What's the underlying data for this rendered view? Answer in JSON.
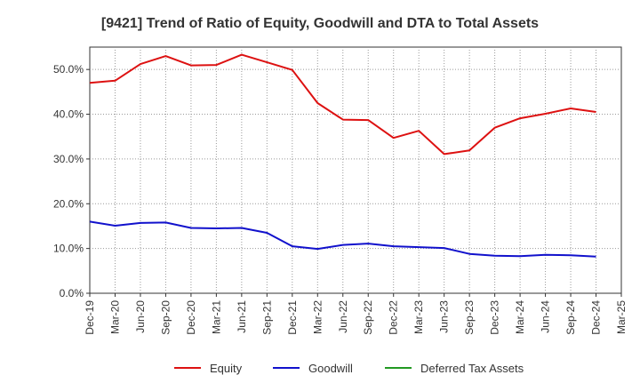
{
  "chart_data": {
    "type": "line",
    "title": "[9421]  Trend of Ratio of Equity, Goodwill and DTA to Total Assets",
    "xlabel": "",
    "ylabel": "",
    "ylim": [
      0,
      55
    ],
    "yticks": [
      0,
      10,
      20,
      30,
      40,
      50
    ],
    "ytick_labels": [
      "0.0%",
      "10.0%",
      "20.0%",
      "30.0%",
      "40.0%",
      "50.0%"
    ],
    "categories": [
      "Dec-19",
      "Mar-20",
      "Jun-20",
      "Sep-20",
      "Dec-20",
      "Mar-21",
      "Jun-21",
      "Sep-21",
      "Dec-21",
      "Mar-22",
      "Jun-22",
      "Sep-22",
      "Dec-22",
      "Mar-23",
      "Jun-23",
      "Sep-23",
      "Dec-23",
      "Mar-24",
      "Jun-24",
      "Sep-24",
      "Dec-24",
      "Mar-25"
    ],
    "grid": true,
    "legend_position": "bottom",
    "series": [
      {
        "name": "Equity",
        "color": "#dd1111",
        "values": [
          47.0,
          47.5,
          51.2,
          53.0,
          50.9,
          51.0,
          53.3,
          51.6,
          49.9,
          42.5,
          38.8,
          38.7,
          34.7,
          36.3,
          31.1,
          31.9,
          37.0,
          39.1,
          40.1,
          41.3,
          40.5,
          null
        ]
      },
      {
        "name": "Goodwill",
        "color": "#1111cc",
        "values": [
          16.0,
          15.1,
          15.7,
          15.8,
          14.6,
          14.5,
          14.6,
          13.5,
          10.5,
          9.9,
          10.8,
          11.1,
          10.5,
          10.3,
          10.1,
          8.8,
          8.4,
          8.3,
          8.6,
          8.5,
          8.2,
          null
        ]
      },
      {
        "name": "Deferred Tax Assets",
        "color": "#229922",
        "values": [
          null,
          null,
          null,
          null,
          null,
          null,
          null,
          null,
          null,
          null,
          null,
          null,
          null,
          null,
          null,
          null,
          null,
          null,
          null,
          null,
          null,
          null
        ]
      }
    ]
  }
}
